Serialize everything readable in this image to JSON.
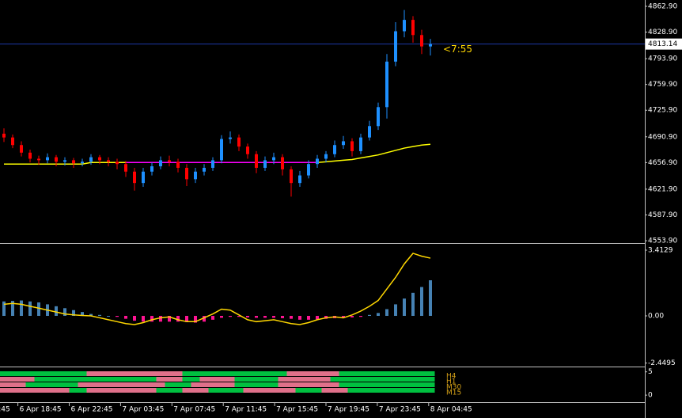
{
  "chart_data": [
    {
      "type": "candlestick",
      "up_color": "#1e90ff",
      "down_color": "#ff0000",
      "candles": [
        [
          4695,
          4702,
          4684,
          4690
        ],
        [
          4690,
          4694,
          4676,
          4680
        ],
        [
          4680,
          4685,
          4665,
          4670
        ],
        [
          4670,
          4674,
          4657,
          4662
        ],
        [
          4662,
          4666,
          4654,
          4660
        ],
        [
          4660,
          4669,
          4656,
          4664
        ],
        [
          4664,
          4667,
          4652,
          4658
        ],
        [
          4658,
          4664,
          4653,
          4660
        ],
        [
          4660,
          4663,
          4650,
          4656
        ],
        [
          4656,
          4662,
          4652,
          4658
        ],
        [
          4658,
          4668,
          4654,
          4664
        ],
        [
          4664,
          4667,
          4655,
          4660
        ],
        [
          4660,
          4664,
          4652,
          4658
        ],
        [
          4658,
          4662,
          4648,
          4655
        ],
        [
          4655,
          4659,
          4638,
          4645
        ],
        [
          4645,
          4650,
          4620,
          4630
        ],
        [
          4630,
          4650,
          4625,
          4645
        ],
        [
          4645,
          4657,
          4640,
          4652
        ],
        [
          4652,
          4665,
          4648,
          4660
        ],
        [
          4660,
          4666,
          4652,
          4658
        ],
        [
          4658,
          4662,
          4644,
          4650
        ],
        [
          4650,
          4655,
          4626,
          4635
        ],
        [
          4635,
          4650,
          4630,
          4645
        ],
        [
          4645,
          4655,
          4640,
          4650
        ],
        [
          4650,
          4664,
          4646,
          4660
        ],
        [
          4660,
          4693,
          4656,
          4688
        ],
        [
          4688,
          4698,
          4682,
          4690
        ],
        [
          4690,
          4694,
          4672,
          4678
        ],
        [
          4678,
          4682,
          4662,
          4668
        ],
        [
          4668,
          4672,
          4643,
          4650
        ],
        [
          4650,
          4665,
          4646,
          4660
        ],
        [
          4660,
          4670,
          4655,
          4664
        ],
        [
          4664,
          4668,
          4640,
          4648
        ],
        [
          4648,
          4652,
          4612,
          4630
        ],
        [
          4630,
          4646,
          4625,
          4640
        ],
        [
          4640,
          4660,
          4636,
          4655
        ],
        [
          4655,
          4667,
          4650,
          4662
        ],
        [
          4662,
          4672,
          4657,
          4668
        ],
        [
          4668,
          4686,
          4664,
          4680
        ],
        [
          4680,
          4692,
          4675,
          4685
        ],
        [
          4685,
          4689,
          4665,
          4672
        ],
        [
          4672,
          4695,
          4668,
          4690
        ],
        [
          4690,
          4712,
          4686,
          4705
        ],
        [
          4705,
          4736,
          4700,
          4730
        ],
        [
          4730,
          4800,
          4715,
          4790
        ],
        [
          4790,
          4842,
          4784,
          4830
        ],
        [
          4830,
          4858,
          4822,
          4845
        ],
        [
          4845,
          4850,
          4815,
          4825
        ],
        [
          4825,
          4832,
          4800,
          4810
        ],
        [
          4810,
          4820,
          4798,
          4813.14
        ]
      ],
      "ma": {
        "color": "#ffff00",
        "values": [
          4655,
          4655,
          4655,
          4655,
          4655,
          4655,
          4655,
          4655,
          4655,
          4655,
          4657,
          4657,
          4657,
          4657,
          4657,
          4657,
          4657,
          4657,
          4657,
          4657,
          4657,
          4657,
          4657,
          4657,
          4657,
          4657,
          4657,
          4657,
          4657,
          4657,
          4657,
          4657,
          4657,
          4657,
          4657,
          4657,
          4657,
          4658,
          4659,
          4660,
          4661,
          4663,
          4665,
          4667,
          4670,
          4673,
          4676,
          4678,
          4680,
          4681
        ]
      },
      "ma_alt": {
        "color": "#ff00ff",
        "values": [
          null,
          null,
          null,
          null,
          null,
          null,
          null,
          null,
          null,
          null,
          null,
          null,
          null,
          null,
          4657,
          4657,
          4657,
          4657,
          4657,
          4657,
          4657,
          4657,
          4657,
          4657,
          4657,
          4657,
          4657,
          4657,
          4657,
          4657,
          4657,
          4657,
          4657,
          4657,
          4657,
          4657,
          4657,
          null,
          null,
          null,
          null,
          null,
          null,
          null,
          null,
          null,
          null,
          null,
          null,
          null
        ]
      },
      "ylim": [
        4551.9,
        4871.2
      ],
      "yticks": [
        {
          "value": 4862.9,
          "label": "4862.90"
        },
        {
          "value": 4828.9,
          "label": "4828.90"
        },
        {
          "value": 4793.9,
          "label": "4793.90"
        },
        {
          "value": 4759.9,
          "label": "4759.90"
        },
        {
          "value": 4725.9,
          "label": "4725.90"
        },
        {
          "value": 4690.9,
          "label": "4690.90"
        },
        {
          "value": 4656.9,
          "label": "4656.90"
        },
        {
          "value": 4621.9,
          "label": "4621.90"
        },
        {
          "value": 4587.9,
          "label": "4587.90"
        },
        {
          "value": 4553.9,
          "label": "4553.90"
        }
      ],
      "current_price": {
        "value": 4813.14,
        "label": "4813.14"
      },
      "countdown": "<7:55",
      "x_labels": [
        {
          "value": -0.8,
          "label": ":45"
        },
        {
          "value": 1.6,
          "label": "6 Apr 18:45"
        },
        {
          "value": 7.5,
          "label": "6 Apr 22:45"
        },
        {
          "value": 13.4,
          "label": "7 Apr 03:45"
        },
        {
          "value": 19.3,
          "label": "7 Apr 07:45"
        },
        {
          "value": 25.2,
          "label": "7 Apr 11:45"
        },
        {
          "value": 31.1,
          "label": "7 Apr 15:45"
        },
        {
          "value": 37.0,
          "label": "7 Apr 19:45"
        },
        {
          "value": 42.9,
          "label": "7 Apr 23:45"
        },
        {
          "value": 48.8,
          "label": "8 Apr 04:45"
        }
      ]
    },
    {
      "type": "macd",
      "histogram": {
        "pos_color": "#4682b4",
        "neg_color": "#ff1493",
        "values": [
          0.75,
          0.78,
          0.8,
          0.75,
          0.7,
          0.6,
          0.5,
          0.4,
          0.3,
          0.2,
          0.1,
          0.05,
          0,
          -0.05,
          -0.15,
          -0.25,
          -0.3,
          -0.3,
          -0.3,
          -0.3,
          -0.3,
          -0.32,
          -0.35,
          -0.3,
          -0.2,
          -0.1,
          -0.05,
          -0.05,
          -0.08,
          -0.1,
          -0.1,
          -0.1,
          -0.12,
          -0.15,
          -0.2,
          -0.2,
          -0.18,
          -0.15,
          -0.12,
          -0.1,
          -0.08,
          -0.05,
          0.05,
          0.15,
          0.35,
          0.6,
          0.9,
          1.2,
          1.5,
          1.85
        ]
      },
      "signal": {
        "color": "#ffd700",
        "values": [
          0.6,
          0.65,
          0.6,
          0.5,
          0.4,
          0.3,
          0.2,
          0.1,
          0.05,
          0.02,
          0,
          -0.1,
          -0.2,
          -0.3,
          -0.4,
          -0.45,
          -0.35,
          -0.2,
          -0.1,
          -0.05,
          -0.2,
          -0.3,
          -0.3,
          -0.1,
          0.1,
          0.35,
          0.3,
          0.05,
          -0.2,
          -0.3,
          -0.25,
          -0.2,
          -0.3,
          -0.4,
          -0.45,
          -0.35,
          -0.2,
          -0.1,
          -0.05,
          -0.1,
          0.05,
          0.25,
          0.5,
          0.8,
          1.4,
          2.0,
          2.7,
          3.25,
          3.1,
          3.0
        ]
      },
      "ylim": [
        -2.59,
        3.66
      ],
      "yticks": [
        3.4129,
        {
          "value": 0,
          "label": "0.00"
        },
        -2.4495
      ]
    },
    {
      "type": "timeframe-strip",
      "up_color": "#00c040",
      "down_color": "#e0708a",
      "label_color": "#d4a017",
      "rows": [
        {
          "name": "H4",
          "values": [
            1,
            1,
            1,
            1,
            1,
            1,
            1,
            1,
            1,
            1,
            0,
            0,
            0,
            0,
            0,
            0,
            0,
            0,
            0,
            0,
            0,
            1,
            1,
            1,
            1,
            1,
            1,
            1,
            1,
            1,
            1,
            1,
            1,
            0,
            0,
            0,
            0,
            0,
            0,
            1,
            1,
            1,
            1,
            1,
            1,
            1,
            1,
            1,
            1,
            1
          ]
        },
        {
          "name": "H1",
          "values": [
            0,
            0,
            0,
            0,
            1,
            1,
            1,
            1,
            1,
            1,
            1,
            1,
            1,
            1,
            1,
            1,
            1,
            1,
            0,
            0,
            0,
            1,
            1,
            0,
            0,
            0,
            0,
            1,
            1,
            1,
            1,
            1,
            0,
            0,
            0,
            0,
            0,
            0,
            1,
            1,
            1,
            1,
            1,
            1,
            1,
            1,
            1,
            1,
            1,
            1
          ]
        },
        {
          "name": "M30",
          "values": [
            0,
            0,
            0,
            1,
            1,
            1,
            1,
            1,
            1,
            0,
            0,
            0,
            0,
            0,
            0,
            0,
            0,
            0,
            0,
            1,
            1,
            1,
            0,
            0,
            0,
            0,
            0,
            1,
            1,
            1,
            1,
            1,
            0,
            0,
            0,
            0,
            0,
            0,
            0,
            1,
            1,
            1,
            1,
            1,
            1,
            1,
            1,
            1,
            1,
            1
          ]
        },
        {
          "name": "M15",
          "values": [
            0,
            0,
            0,
            0,
            0,
            0,
            0,
            0,
            1,
            1,
            0,
            0,
            0,
            0,
            0,
            0,
            0,
            0,
            1,
            1,
            1,
            0,
            0,
            0,
            1,
            1,
            1,
            1,
            0,
            0,
            0,
            0,
            0,
            0,
            1,
            1,
            1,
            0,
            0,
            0,
            1,
            1,
            1,
            1,
            1,
            1,
            1,
            1,
            1,
            1
          ]
        }
      ],
      "ylim": [
        -1,
        5.8
      ],
      "yticks": [
        5,
        0
      ]
    }
  ]
}
